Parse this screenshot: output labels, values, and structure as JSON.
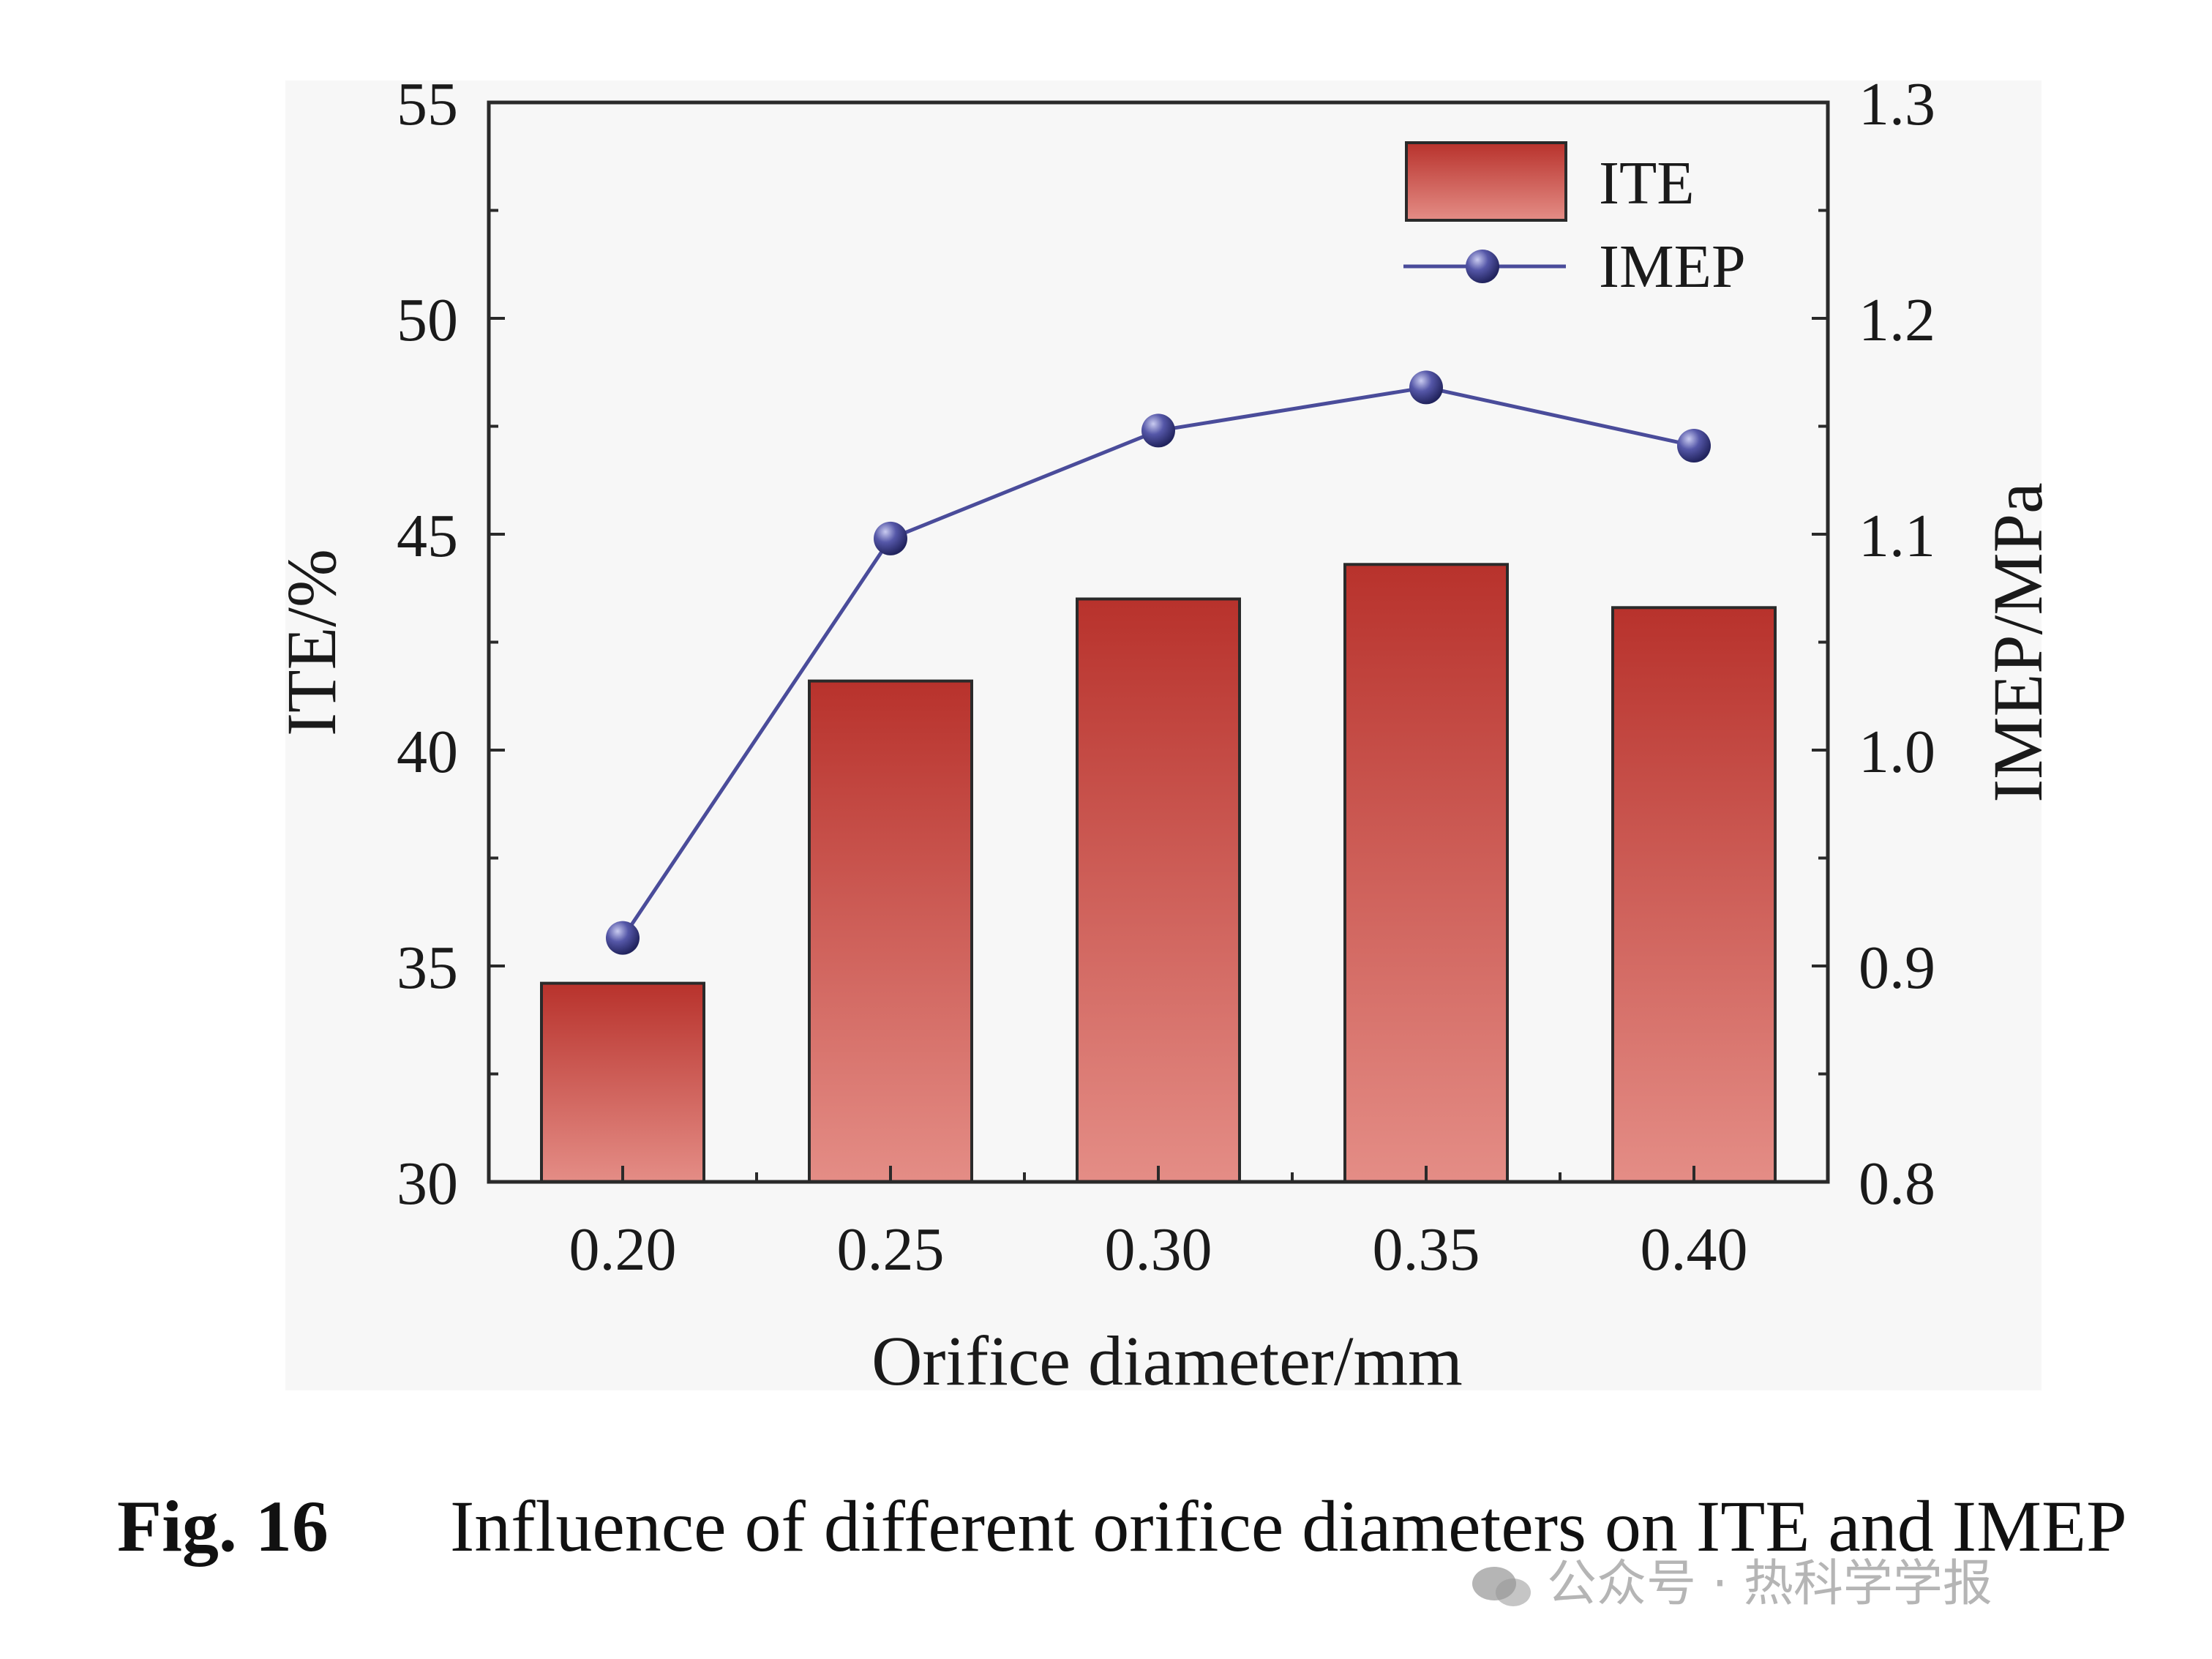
{
  "chart_data": {
    "type": "bar",
    "categories": [
      "0.20",
      "0.25",
      "0.30",
      "0.35",
      "0.40"
    ],
    "series": [
      {
        "name": "ITE",
        "type": "bar",
        "axis": "left",
        "values": [
          34.6,
          41.6,
          43.5,
          44.3,
          43.3
        ]
      },
      {
        "name": "IMEP",
        "type": "line",
        "axis": "right",
        "values": [
          0.913,
          1.098,
          1.148,
          1.168,
          1.141
        ]
      }
    ],
    "xlabel": "Orifice diameter/mm",
    "ylabel": "ITE/%",
    "y2label": "IMEP/MPa",
    "ylim": [
      30,
      55
    ],
    "y2lim": [
      0.8,
      1.3
    ],
    "yticks": [
      "30",
      "35",
      "40",
      "45",
      "50",
      "55"
    ],
    "y2ticks": [
      "0.8",
      "0.9",
      "1.0",
      "1.1",
      "1.2",
      "1.3"
    ],
    "legend": {
      "position": "top-right",
      "entries": [
        "ITE",
        "IMEP"
      ]
    },
    "grid": false,
    "colors": {
      "bar_top": "#b8322c",
      "bar_bottom": "#e38a84",
      "bar_edge": "#2a2a2a",
      "line": "#4a4c9a",
      "marker": "#3a3c8c"
    }
  },
  "caption": {
    "label": "Fig. 16",
    "text": "Influence of different orifice diameters on ITE and IMEP"
  },
  "watermark": "公众号 · 热科学学报"
}
